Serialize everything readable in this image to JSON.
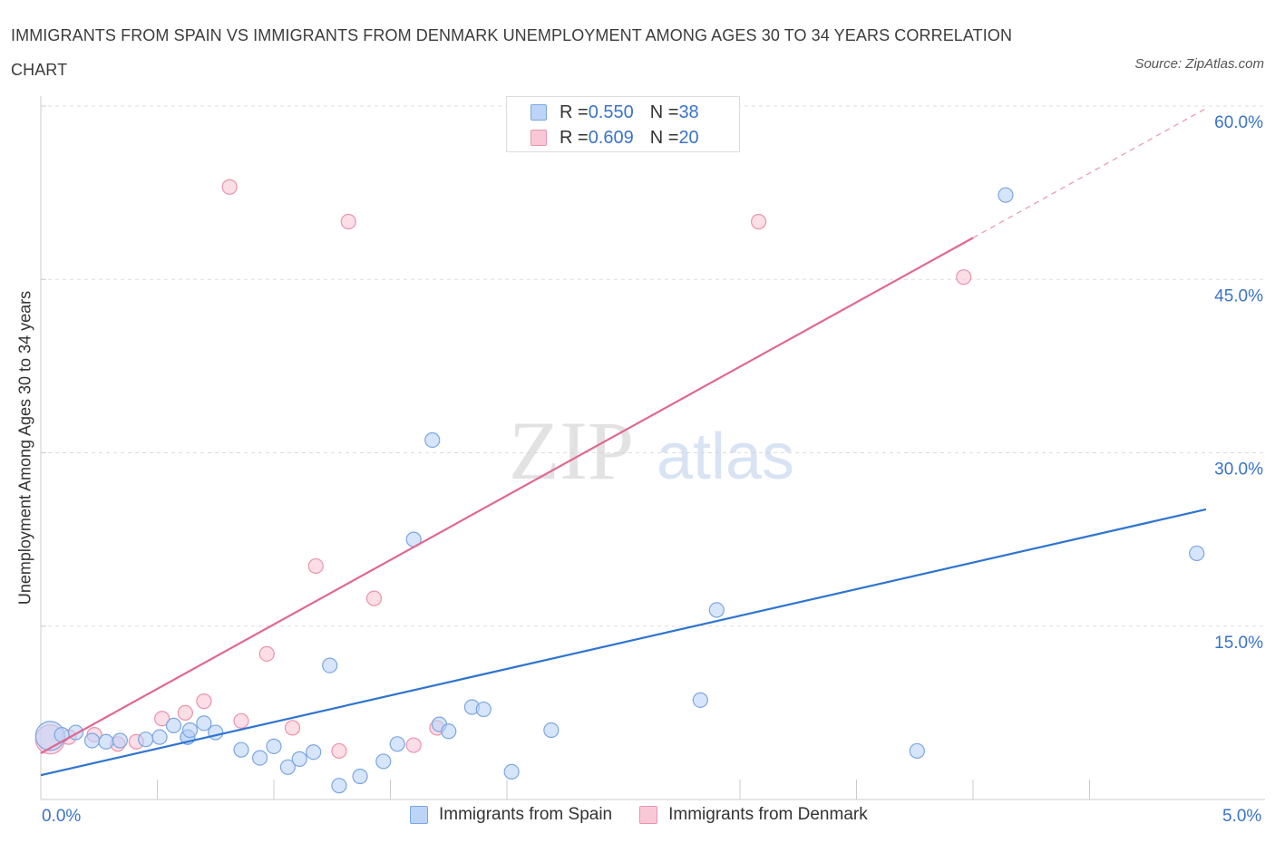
{
  "header": {
    "title": "IMMIGRANTS FROM SPAIN VS IMMIGRANTS FROM DENMARK UNEMPLOYMENT AMONG AGES 30 TO 34 YEARS CORRELATION CHART",
    "source": "Source: ZipAtlas.com"
  },
  "watermark": {
    "zip": "ZIP",
    "atlas": "atlas"
  },
  "legend_top": {
    "spain": {
      "r_label": "R = ",
      "r_value": "0.550",
      "n_label": "N = ",
      "n_value": "38"
    },
    "denmark": {
      "r_label": "R = ",
      "r_value": "0.609",
      "n_label": "N = ",
      "n_value": "20"
    }
  },
  "legend_bottom": {
    "spain": "Immigrants from Spain",
    "denmark": "Immigrants from Denmark"
  },
  "colors": {
    "spain_fill": "#bcd4f6",
    "spain_stroke": "#7aa6e2",
    "spain_line": "#2f74d0",
    "denmark_fill": "#f9c8d6",
    "denmark_stroke": "#eb93ad",
    "denmark_line": "#e0688f",
    "grid": "#dddddd",
    "axis_text": "#3a73c9"
  },
  "chart_data": {
    "type": "scatter",
    "title": "IMMIGRANTS FROM SPAIN VS IMMIGRANTS FROM DENMARK UNEMPLOYMENT AMONG AGES 30 TO 34 YEARS CORRELATION CHART",
    "xlabel": "",
    "ylabel": "Unemployment Among Ages 30 to 34 years",
    "xlim": [
      0,
      5
    ],
    "ylim": [
      0,
      60
    ],
    "x_tick_labels": [
      "0.0%",
      "5.0%"
    ],
    "y_ticks": [
      15,
      30,
      45,
      60
    ],
    "y_tick_labels": [
      "15.0%",
      "30.0%",
      "45.0%",
      "60.0%"
    ],
    "grid": true,
    "series": [
      {
        "name": "Immigrants from Spain",
        "R": 0.55,
        "N": 38,
        "trend": {
          "x": [
            0,
            5
          ],
          "y": [
            2.1,
            25.1
          ],
          "dashed_extension": false
        },
        "points": [
          {
            "x": 0.04,
            "y": 5.5,
            "big": true
          },
          {
            "x": 0.09,
            "y": 5.6
          },
          {
            "x": 0.15,
            "y": 5.8
          },
          {
            "x": 0.22,
            "y": 5.1
          },
          {
            "x": 0.28,
            "y": 5.0
          },
          {
            "x": 0.34,
            "y": 5.1
          },
          {
            "x": 0.45,
            "y": 5.2
          },
          {
            "x": 0.51,
            "y": 5.4
          },
          {
            "x": 0.57,
            "y": 6.4
          },
          {
            "x": 0.63,
            "y": 5.4
          },
          {
            "x": 0.63,
            "y": 5.4
          },
          {
            "x": 0.64,
            "y": 6.0
          },
          {
            "x": 0.7,
            "y": 6.6
          },
          {
            "x": 0.75,
            "y": 5.8
          },
          {
            "x": 0.86,
            "y": 4.3
          },
          {
            "x": 0.94,
            "y": 3.6
          },
          {
            "x": 1.0,
            "y": 4.6
          },
          {
            "x": 1.06,
            "y": 2.8
          },
          {
            "x": 1.11,
            "y": 3.5
          },
          {
            "x": 1.17,
            "y": 4.1
          },
          {
            "x": 1.24,
            "y": 11.6
          },
          {
            "x": 1.28,
            "y": 1.2
          },
          {
            "x": 1.37,
            "y": 2.0
          },
          {
            "x": 1.47,
            "y": 3.3
          },
          {
            "x": 1.53,
            "y": 4.8
          },
          {
            "x": 1.6,
            "y": 22.5
          },
          {
            "x": 1.68,
            "y": 31.1
          },
          {
            "x": 1.71,
            "y": 6.5
          },
          {
            "x": 1.75,
            "y": 5.9
          },
          {
            "x": 1.85,
            "y": 8.0
          },
          {
            "x": 1.9,
            "y": 7.8
          },
          {
            "x": 2.02,
            "y": 2.4
          },
          {
            "x": 2.19,
            "y": 6.0
          },
          {
            "x": 2.83,
            "y": 8.6
          },
          {
            "x": 2.9,
            "y": 16.4
          },
          {
            "x": 3.76,
            "y": 4.2
          },
          {
            "x": 4.14,
            "y": 52.3
          },
          {
            "x": 4.96,
            "y": 21.3
          }
        ]
      },
      {
        "name": "Immigrants from Denmark",
        "R": 0.609,
        "N": 20,
        "trend": {
          "x": [
            0,
            4.0
          ],
          "y": [
            4.0,
            48.6
          ],
          "dashed_extension": {
            "x": [
              4.0,
              5.0
            ],
            "y": [
              48.6,
              59.8
            ]
          }
        },
        "points": [
          {
            "x": 0.04,
            "y": 5.2,
            "big": true
          },
          {
            "x": 0.12,
            "y": 5.4
          },
          {
            "x": 0.23,
            "y": 5.6
          },
          {
            "x": 0.33,
            "y": 4.8
          },
          {
            "x": 0.41,
            "y": 5.0
          },
          {
            "x": 0.52,
            "y": 7.0
          },
          {
            "x": 0.62,
            "y": 7.5
          },
          {
            "x": 0.7,
            "y": 8.5
          },
          {
            "x": 0.81,
            "y": 53.0
          },
          {
            "x": 0.86,
            "y": 6.8
          },
          {
            "x": 0.97,
            "y": 12.6
          },
          {
            "x": 1.08,
            "y": 6.2
          },
          {
            "x": 1.18,
            "y": 20.2
          },
          {
            "x": 1.28,
            "y": 4.2
          },
          {
            "x": 1.32,
            "y": 50.0
          },
          {
            "x": 1.43,
            "y": 17.4
          },
          {
            "x": 1.6,
            "y": 4.7
          },
          {
            "x": 1.7,
            "y": 6.2
          },
          {
            "x": 3.08,
            "y": 50.0
          },
          {
            "x": 3.96,
            "y": 45.2
          }
        ]
      }
    ]
  }
}
